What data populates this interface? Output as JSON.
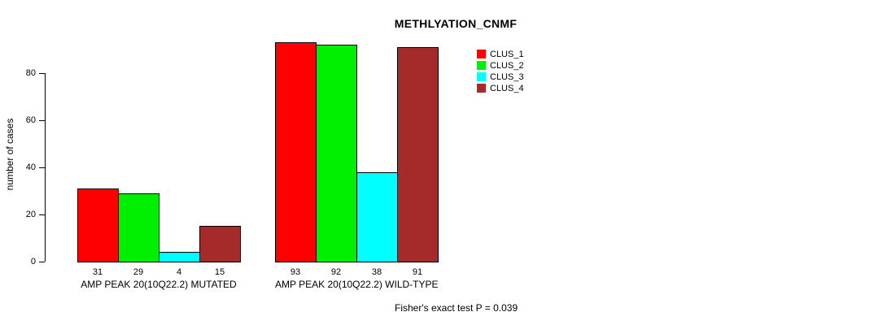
{
  "title": "METHLYATION_CNMF",
  "ylabel": "number of cases",
  "footnote": "Fisher's exact test P = 0.039",
  "chart_data": {
    "type": "bar",
    "title": "METHLYATION_CNMF",
    "xlabel": "",
    "ylabel": "number of cases",
    "grid": false,
    "legend_position": "top-right",
    "yticks": [
      0,
      20,
      40,
      60,
      80
    ],
    "ylim": [
      0,
      93
    ],
    "series": [
      {
        "name": "CLUS_1",
        "color": "#FF0000"
      },
      {
        "name": "CLUS_2",
        "color": "#00EE00"
      },
      {
        "name": "CLUS_3",
        "color": "#00FFFF"
      },
      {
        "name": "CLUS_4",
        "color": "#A52A2A"
      }
    ],
    "groups": [
      {
        "label": "AMP PEAK 20(10Q22.2) MUTATED",
        "values": [
          31,
          29,
          4,
          15
        ]
      },
      {
        "label": "AMP PEAK 20(10Q22.2) WILD-TYPE",
        "values": [
          93,
          92,
          38,
          91
        ]
      }
    ],
    "annotation": "Fisher's exact test P = 0.039"
  }
}
